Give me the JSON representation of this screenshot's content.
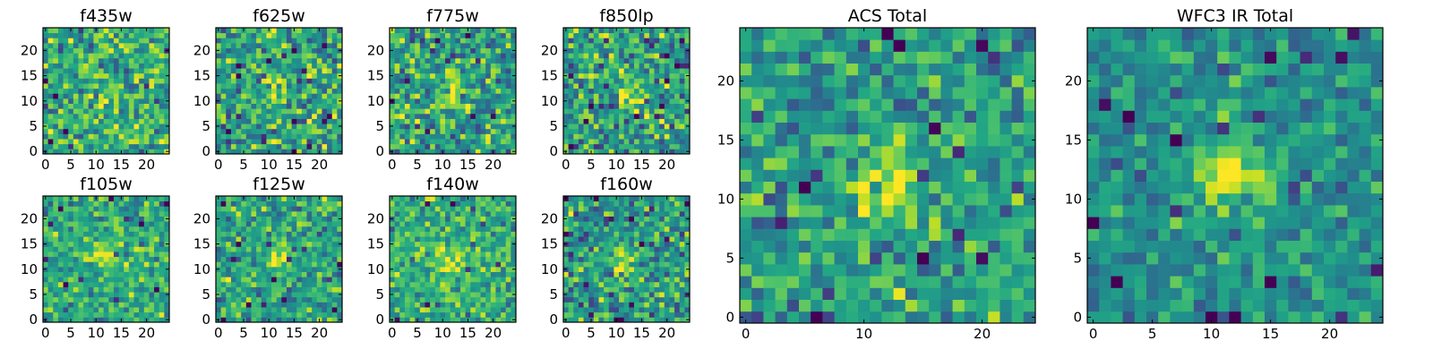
{
  "chart_data": [
    {
      "type": "heatmap",
      "title": "f435w",
      "x_ticks": [
        0,
        5,
        10,
        15,
        20
      ],
      "y_ticks": [
        0,
        5,
        10,
        15,
        20
      ],
      "grid_size": 25,
      "xlim": [
        -0.5,
        24.5
      ],
      "ylim": [
        -0.5,
        24.5
      ],
      "colormap": "viridis",
      "source_center": [
        12,
        11
      ],
      "source_strength": 0.15,
      "noise": 0.7,
      "seed": 11,
      "base": 0.62
    },
    {
      "type": "heatmap",
      "title": "f625w",
      "x_ticks": [
        0,
        5,
        10,
        15,
        20
      ],
      "y_ticks": [
        0,
        5,
        10,
        15,
        20
      ],
      "grid_size": 25,
      "xlim": [
        -0.5,
        24.5
      ],
      "ylim": [
        -0.5,
        24.5
      ],
      "colormap": "viridis",
      "source_center": [
        12,
        12
      ],
      "source_strength": 0.3,
      "noise": 0.72,
      "seed": 23,
      "base": 0.58
    },
    {
      "type": "heatmap",
      "title": "f775w",
      "x_ticks": [
        0,
        5,
        10,
        15,
        20
      ],
      "y_ticks": [
        0,
        5,
        10,
        15,
        20
      ],
      "grid_size": 25,
      "xlim": [
        -0.5,
        24.5
      ],
      "ylim": [
        -0.5,
        24.5
      ],
      "colormap": "viridis",
      "source_center": [
        12,
        12
      ],
      "source_strength": 0.35,
      "noise": 0.72,
      "seed": 37,
      "base": 0.58
    },
    {
      "type": "heatmap",
      "title": "f850lp",
      "x_ticks": [
        0,
        5,
        10,
        15,
        20
      ],
      "y_ticks": [
        0,
        5,
        10,
        15,
        20
      ],
      "grid_size": 25,
      "xlim": [
        -0.5,
        24.5
      ],
      "ylim": [
        -0.5,
        24.5
      ],
      "colormap": "viridis",
      "source_center": [
        13,
        11
      ],
      "source_strength": 0.3,
      "noise": 0.75,
      "seed": 41,
      "base": 0.56
    },
    {
      "type": "heatmap",
      "title": "f105w",
      "x_ticks": [
        0,
        5,
        10,
        15,
        20
      ],
      "y_ticks": [
        0,
        5,
        10,
        15,
        20
      ],
      "grid_size": 25,
      "xlim": [
        -0.5,
        24.5
      ],
      "ylim": [
        -0.5,
        24.5
      ],
      "colormap": "viridis",
      "source_center": [
        11,
        13
      ],
      "source_strength": 0.25,
      "noise": 0.55,
      "seed": 53,
      "base": 0.62
    },
    {
      "type": "heatmap",
      "title": "f125w",
      "x_ticks": [
        0,
        5,
        10,
        15,
        20
      ],
      "y_ticks": [
        0,
        5,
        10,
        15,
        20
      ],
      "grid_size": 25,
      "xlim": [
        -0.5,
        24.5
      ],
      "ylim": [
        -0.5,
        24.5
      ],
      "colormap": "viridis",
      "source_center": [
        12,
        12
      ],
      "source_strength": 0.3,
      "noise": 0.6,
      "seed": 67,
      "base": 0.6
    },
    {
      "type": "heatmap",
      "title": "f140w",
      "x_ticks": [
        0,
        5,
        10,
        15,
        20
      ],
      "y_ticks": [
        0,
        5,
        10,
        15,
        20
      ],
      "grid_size": 25,
      "xlim": [
        -0.5,
        24.5
      ],
      "ylim": [
        -0.5,
        24.5
      ],
      "colormap": "viridis",
      "source_center": [
        12,
        12
      ],
      "source_strength": 0.25,
      "noise": 0.55,
      "seed": 79,
      "base": 0.64
    },
    {
      "type": "heatmap",
      "title": "f160w",
      "x_ticks": [
        0,
        5,
        10,
        15,
        20
      ],
      "y_ticks": [
        0,
        5,
        10,
        15,
        20
      ],
      "grid_size": 25,
      "xlim": [
        -0.5,
        24.5
      ],
      "ylim": [
        -0.5,
        24.5
      ],
      "colormap": "viridis",
      "source_center": [
        12,
        12
      ],
      "source_strength": 0.4,
      "noise": 0.7,
      "seed": 83,
      "base": 0.55
    },
    {
      "type": "heatmap",
      "title": "ACS Total",
      "x_ticks": [
        0,
        10,
        20
      ],
      "y_ticks": [
        0,
        5,
        10,
        15,
        20
      ],
      "grid_size": 25,
      "xlim": [
        -0.5,
        24.5
      ],
      "ylim": [
        -0.5,
        24.5
      ],
      "colormap": "viridis",
      "source_center": [
        12,
        11
      ],
      "source_strength": 0.4,
      "noise": 0.6,
      "seed": 97,
      "base": 0.55
    },
    {
      "type": "heatmap",
      "title": "WFC3 IR Total",
      "x_ticks": [
        0,
        5,
        10,
        15,
        20
      ],
      "y_ticks": [
        0,
        5,
        10,
        15,
        20
      ],
      "grid_size": 25,
      "xlim": [
        -0.5,
        24.5
      ],
      "ylim": [
        -0.5,
        24.5
      ],
      "colormap": "viridis",
      "source_center": [
        12,
        12
      ],
      "source_strength": 0.45,
      "noise": 0.45,
      "seed": 101,
      "base": 0.52
    }
  ]
}
